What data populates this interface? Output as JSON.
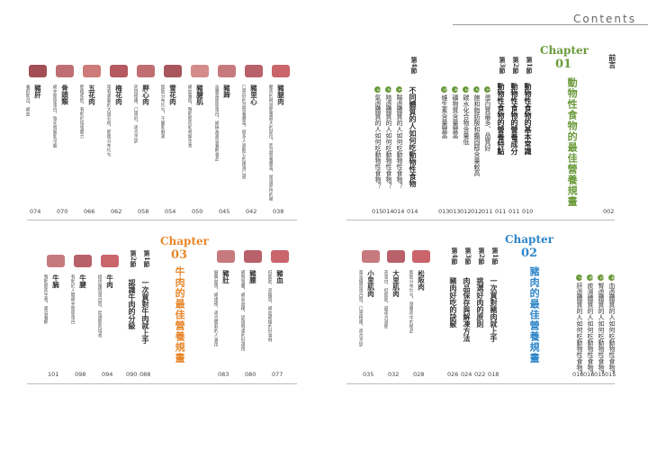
{
  "header": {
    "title": "Contents"
  },
  "colors": {
    "green": "#6a9a3b",
    "orange": "#e8862a",
    "blue": "#2f86c8"
  },
  "preface": {
    "label": "前言",
    "page": "002"
  },
  "chapter1": {
    "label": "Chapter",
    "num": "01",
    "title": "動物性食物的最佳營養規畫",
    "sections": [
      {
        "label": "第1節",
        "title": "動物性食物的基本常識",
        "page": "010"
      },
      {
        "label": "第2節",
        "title": "動物性食物的營養成分",
        "page": "011"
      },
      {
        "label": "第3節",
        "title": "動物性食物的營養特點",
        "page": "011"
      }
    ],
    "items": [
      {
        "num": "1",
        "text": "蛋白質最多、品質好",
        "page": "011"
      },
      {
        "num": "2",
        "text": "飽和脂肪酸和膽固醇含量較高",
        "page": "012"
      },
      {
        "num": "3",
        "text": "碳水化合物含量低",
        "page": "012"
      },
      {
        "num": "4",
        "text": "礦物質含量豐富",
        "page": "013"
      },
      {
        "num": "5",
        "text": "維生素含量豐富",
        "page": "013"
      }
    ],
    "section4": {
      "label": "第4節",
      "title": "不同體質的人如何吃動物性食物",
      "page": "014"
    },
    "items4": [
      {
        "num": "1",
        "text": "陽虛體質的人如何吃動物性食物？",
        "page": "014"
      },
      {
        "num": "2",
        "text": "陰虛體質的人如何吃動物性食物？",
        "page": "014"
      },
      {
        "num": "3",
        "text": "氣虛體質的人如何吃動物性食物？",
        "page": "015"
      }
    ]
  },
  "chapter1_meats": [
    {
      "name": "豬腿肉",
      "desc": "豬肉的時滋肥量最大的部位，而且營養豐富，是溫熱性的優質蛋白質來源",
      "page": "038"
    },
    {
      "name": "豬里心",
      "desc": "口感好的且營養豐富，很多人喜歡它的嫩滑口感",
      "page": "042"
    },
    {
      "name": "豬蹄",
      "desc": "含豐富膠原蛋白，被稱為美容養顏食品",
      "page": "045"
    },
    {
      "name": "豬腱肌",
      "desc": "補血養陰，幫助肌肉和骨骼生長",
      "page": "050"
    },
    {
      "name": "雪花肉",
      "desc": "脂肪分布均勻，不膩和鮮美",
      "page": "054"
    },
    {
      "name": "胛心肉",
      "desc": "肉質細嫩，口感好，適合烹調",
      "page": "058"
    },
    {
      "name": "梅花肉",
      "desc": "帶有美麗的大理石紋，肥瘦分布均勻",
      "page": "062"
    },
    {
      "name": "五花肉",
      "desc": "肥瘦相間，有助於增強體力",
      "page": "066"
    },
    {
      "name": "骨頭類",
      "desc": "補充膠原蛋白，強化骨骼和牙齒",
      "page": "070"
    },
    {
      "name": "豬肝",
      "desc": "養肝明目，補血",
      "page": "074"
    }
  ],
  "chapter2": {
    "label": "Chapter",
    "num": "02",
    "title": "豬肉的最佳營養規畫",
    "items": [
      {
        "num": "4",
        "text": "血虛體質的人如何吃動物性食物？",
        "page": "015"
      },
      {
        "num": "5",
        "text": "腎虛體質的人如何吃動物性食物？",
        "page": "015"
      },
      {
        "num": "6",
        "text": "痰濕體質的人如何吃動物性食物？",
        "page": "016"
      },
      {
        "num": "7",
        "text": "肝虛體質的人如何吃動物性食物？",
        "page": "016"
      }
    ],
    "sections": [
      {
        "label": "第1節",
        "title": "一次買對豬肉就上手",
        "page": "018"
      },
      {
        "label": "第2節",
        "title": "挑選好肉的原則",
        "page": "022"
      },
      {
        "label": "第3節",
        "title": "肉品保存與解凍方法",
        "page": "024"
      },
      {
        "label": "第4節",
        "title": "豬肉好吃的訣竅",
        "page": "026"
      }
    ],
    "meats": [
      {
        "name": "松阪肉",
        "desc": "脂肪分布均勻，是豬肉中的極品",
        "page": "028"
      },
      {
        "name": "大里肌肉",
        "desc": "高蛋白、低脂肪，最適合減肥",
        "page": "032"
      },
      {
        "name": "小里肌肉",
        "desc": "富含優質蛋白質，口感細嫩，適合烹調",
        "page": "035"
      }
    ]
  },
  "chapter2_right": [
    {
      "name": "豬血",
      "desc": "低脂肪、高鐵質，補血補鐵的好食材",
      "page": "077"
    },
    {
      "name": "豬腰",
      "desc": "補腎強腰，補氣益精，調理腎虛的好選擇",
      "page": "080"
    },
    {
      "name": "豬肚",
      "desc": "健脾益胃，補虛損，適合體弱的人食用",
      "page": "083"
    }
  ],
  "chapter3": {
    "label": "Chapter",
    "num": "03",
    "title": "牛肉的最佳營養規畫",
    "sections": [
      {
        "label": "第1節",
        "title": "一次買對牛肉就上手",
        "page": "088"
      },
      {
        "label": "第2節",
        "title": "認識牛肉的分級",
        "page": "090"
      }
    ],
    "meats": [
      {
        "name": "牛肉",
        "desc": "提供優質蛋白質，促進肌肉增長",
        "page": "094"
      },
      {
        "name": "牛腱",
        "desc": "有助於人體補充膠原蛋白",
        "page": "098"
      },
      {
        "name": "牛腩",
        "desc": "幫助肌肉生長，美容養顏",
        "page": "101"
      }
    ]
  }
}
